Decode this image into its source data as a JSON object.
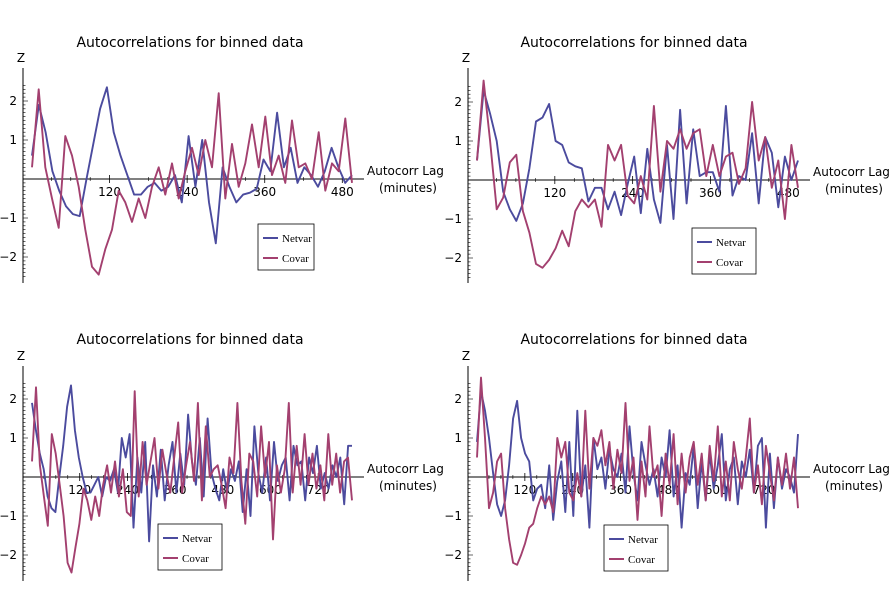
{
  "chart_data": [
    {
      "type": "line",
      "title": "Autocorrelations for binned data",
      "ylabel": "Z",
      "xlabel": "Autocorr Lag",
      "xunits": "(minutes)",
      "xlim": [
        0,
        495
      ],
      "ylim": [
        -2.6,
        2.7
      ],
      "xticks": [
        120,
        240,
        360,
        480
      ],
      "yticks": [
        -2,
        -1,
        1,
        2
      ],
      "legend": "bottom-right",
      "series": [
        {
          "name": "Netvar",
          "color": "#4b4b9e",
          "values": [
            0.6,
            1.9,
            1.2,
            0.2,
            -0.3,
            -0.7,
            -0.9,
            -0.95,
            0.0,
            0.9,
            1.8,
            2.35,
            1.2,
            0.6,
            0.1,
            -0.4,
            -0.4,
            -0.2,
            -0.1,
            -0.3,
            -0.2,
            0.1,
            -0.6,
            1.1,
            -0.2,
            1.0,
            -0.6,
            -1.65,
            0.3,
            -0.2,
            -0.6,
            -0.4,
            -0.35,
            -0.25,
            0.5,
            0.2,
            1.7,
            0.3,
            0.8,
            -0.1,
            0.3,
            0.1,
            -0.2,
            0.2,
            0.8,
            0.3,
            -0.1,
            0.1
          ]
        },
        {
          "name": "Covar",
          "color": "#a3406f",
          "values": [
            0.3,
            2.3,
            0.3,
            -0.5,
            -1.25,
            1.1,
            0.6,
            -0.2,
            -1.3,
            -2.25,
            -2.45,
            -1.8,
            -1.3,
            -0.3,
            -0.6,
            -1.1,
            -0.5,
            -1.0,
            -0.2,
            0.3,
            -0.4,
            0.4,
            -0.5,
            0.2,
            0.8,
            0.1,
            1.0,
            0.3,
            2.2,
            -0.5,
            0.9,
            -0.2,
            0.4,
            1.4,
            0.3,
            1.6,
            0.1,
            0.6,
            -0.1,
            1.5,
            0.3,
            0.4,
            0.0,
            1.2,
            -0.3,
            0.4,
            0.2,
            1.55,
            -0.1
          ]
        }
      ]
    },
    {
      "type": "line",
      "title": "Autocorrelations for binned data",
      "ylabel": "Z",
      "xlabel": "Autocorr Lag",
      "xunits": "(minutes)",
      "xlim": [
        0,
        495
      ],
      "ylim": [
        -2.6,
        2.7
      ],
      "xticks": [
        120,
        240,
        360,
        480
      ],
      "yticks": [
        -2,
        -1,
        1,
        2
      ],
      "legend": "bottom-right",
      "series": [
        {
          "name": "Netvar",
          "color": "#4b4b9e",
          "values": [
            0.5,
            2.3,
            1.7,
            1.0,
            -0.3,
            -0.75,
            -1.05,
            -0.6,
            0.3,
            1.5,
            1.6,
            1.95,
            1.0,
            0.9,
            0.45,
            0.35,
            0.3,
            -0.55,
            -0.2,
            -0.2,
            -0.75,
            -0.3,
            -0.9,
            -0.1,
            0.6,
            -0.85,
            0.8,
            -0.5,
            -1.1,
            0.9,
            -1.0,
            1.8,
            -0.6,
            1.3,
            0.1,
            0.2,
            0.2,
            -0.3,
            1.9,
            -0.4,
            0.1,
            0.0,
            1.2,
            -0.6,
            1.1,
            0.7,
            -0.7,
            0.6,
            0.0,
            0.5
          ]
        },
        {
          "name": "Covar",
          "color": "#a3406f",
          "values": [
            0.5,
            2.55,
            1.0,
            -0.75,
            -0.45,
            0.45,
            0.65,
            -0.8,
            -1.35,
            -2.15,
            -2.25,
            -2.05,
            -1.75,
            -1.3,
            -1.7,
            -0.8,
            -0.5,
            -0.7,
            -0.5,
            -1.2,
            0.9,
            0.5,
            0.9,
            -0.4,
            -0.6,
            0.1,
            -0.5,
            1.9,
            -0.3,
            1.0,
            0.8,
            1.3,
            0.8,
            1.2,
            1.3,
            0.1,
            0.9,
            0.1,
            0.6,
            0.7,
            -0.1,
            0.3,
            2.0,
            0.5,
            1.1,
            -0.2,
            0.5,
            -1.0,
            0.9,
            -0.2
          ]
        }
      ]
    },
    {
      "type": "line",
      "title": "Autocorrelations for binned data",
      "ylabel": "Z",
      "xlabel": "Autocorr Lag",
      "xunits": "(minutes)",
      "xlim": [
        0,
        805
      ],
      "ylim": [
        -2.6,
        2.7
      ],
      "xticks": [
        120,
        240,
        360,
        480,
        600,
        720
      ],
      "yticks": [
        -2,
        -1,
        1,
        2
      ],
      "legend": "bottom-left",
      "series": [
        {
          "name": "Netvar",
          "color": "#4b4b9e",
          "values": [
            1.9,
            1.2,
            0.6,
            0.2,
            -0.5,
            -0.8,
            -0.9,
            0.0,
            0.8,
            1.8,
            2.35,
            1.2,
            0.5,
            0.0,
            -0.4,
            -0.4,
            -0.2,
            0.0,
            -0.5,
            0.0,
            -0.1,
            0.2,
            -0.4,
            1.0,
            0.5,
            1.1,
            -1.3,
            0.5,
            -0.4,
            0.9,
            -1.65,
            0.3,
            -0.5,
            0.7,
            -0.6,
            0.3,
            0.9,
            -0.4,
            0.6,
            -0.2,
            1.6,
            0.4,
            -0.2,
            1.0,
            -0.5,
            1.5,
            0.1,
            -0.3,
            -0.6,
            0.2,
            -0.4,
            0.2,
            -0.1,
            0.4,
            -0.9,
            0.2,
            -1.0,
            1.3,
            0.1,
            -0.4,
            0.5,
            -0.6,
            0.9,
            -0.1,
            0.3,
            0.5,
            -0.6,
            0.8,
            0.3,
            0.4,
            -0.6,
            0.5,
            0.1,
            0.8,
            -0.3,
            0.1,
            -0.3,
            0.3,
            0.0,
            0.5,
            -0.7,
            0.8,
            0.8
          ]
        },
        {
          "name": "Covar",
          "color": "#a3406f",
          "values": [
            0.4,
            2.3,
            0.3,
            -0.5,
            -1.25,
            1.1,
            0.6,
            -0.2,
            -1.0,
            -2.2,
            -2.45,
            -1.8,
            -1.2,
            -0.3,
            -0.6,
            -1.1,
            -0.5,
            -1.0,
            -0.2,
            0.3,
            -0.4,
            0.4,
            -0.5,
            0.2,
            -0.9,
            -1.0,
            2.2,
            -0.5,
            0.9,
            -0.2,
            0.4,
            1.0,
            -0.3,
            0.7,
            0.1,
            -0.4,
            0.5,
            1.4,
            -0.4,
            0.3,
            0.9,
            -0.1,
            1.9,
            -0.6,
            1.3,
            0.0,
            0.2,
            0.3,
            -0.2,
            -0.8,
            0.5,
            0.1,
            1.9,
            -0.1,
            -1.2,
            0.6,
            0.4,
            -0.5,
            1.3,
            0.0,
            0.9,
            -1.6,
            0.3,
            -0.4,
            0.2,
            1.9,
            -0.4,
            0.8,
            -0.2,
            1.1,
            -0.2,
            0.6,
            -0.3,
            0.3,
            -0.6,
            1.1,
            -0.2,
            0.6,
            -0.4,
            0.4,
            0.5,
            -0.6
          ]
        }
      ]
    },
    {
      "type": "line",
      "title": "Autocorrelations for binned data",
      "ylabel": "Z",
      "xlabel": "Autocorr Lag",
      "xunits": "(minutes)",
      "xlim": [
        0,
        805
      ],
      "ylim": [
        -2.6,
        2.7
      ],
      "xticks": [
        120,
        240,
        360,
        480,
        600,
        720
      ],
      "yticks": [
        -2,
        -1,
        1,
        2
      ],
      "legend": "bottom-left",
      "series": [
        {
          "name": "Netvar",
          "color": "#4b4b9e",
          "values": [
            0.9,
            2.2,
            1.7,
            1.0,
            0.1,
            -0.7,
            -1.0,
            -0.6,
            0.3,
            1.5,
            1.95,
            1.0,
            0.6,
            0.4,
            -0.6,
            -0.3,
            -0.2,
            -0.8,
            0.3,
            -1.1,
            -0.1,
            0.4,
            -0.9,
            0.9,
            -1.0,
            1.7,
            -0.5,
            0.3,
            -1.3,
            1.0,
            0.2,
            0.5,
            -0.3,
            0.7,
            0.2,
            0.0,
            0.6,
            -0.4,
            1.3,
            0.1,
            -0.6,
            0.9,
            0.3,
            -0.2,
            0.2,
            -0.5,
            0.5,
            0.0,
            1.2,
            -0.5,
            0.3,
            -1.3,
            0.1,
            -0.2,
            0.8,
            -0.8,
            0.4,
            -0.6,
            0.6,
            -0.3,
            0.3,
            1.1,
            -0.6,
            0.2,
            0.5,
            -0.7,
            0.4,
            0.0,
            0.7,
            -0.4,
            0.8,
            1.0,
            -1.3,
            0.6,
            -0.8,
            0.5,
            -0.3,
            0.2,
            0.0,
            -0.4,
            1.1
          ]
        },
        {
          "name": "Covar",
          "color": "#a3406f",
          "values": [
            0.5,
            2.55,
            1.0,
            -0.8,
            -0.4,
            0.4,
            0.6,
            -0.8,
            -1.6,
            -2.2,
            -2.25,
            -2.0,
            -1.7,
            -1.3,
            -1.2,
            -0.8,
            -0.5,
            -0.7,
            -0.5,
            -0.9,
            1.0,
            0.5,
            0.9,
            -0.4,
            -0.6,
            0.1,
            -0.5,
            1.7,
            -0.3,
            1.0,
            0.8,
            1.2,
            0.3,
            0.9,
            -0.3,
            0.7,
            0.1,
            1.9,
            -0.1,
            0.5,
            -1.1,
            0.4,
            -0.5,
            1.3,
            0.0,
            0.3,
            -1.0,
            0.6,
            -0.2,
            1.1,
            -0.7,
            0.6,
            -0.4,
            0.5,
            0.9,
            -0.2,
            0.6,
            -0.6,
            0.8,
            -0.1,
            1.3,
            -0.5,
            0.4,
            -0.6,
            0.9,
            0.2,
            -0.3,
            0.5,
            1.5,
            -0.4,
            0.3,
            -0.7,
            0.8,
            0.1,
            -0.6,
            0.5,
            -0.2,
            0.6,
            -0.3,
            0.5,
            -0.8
          ]
        }
      ]
    }
  ]
}
